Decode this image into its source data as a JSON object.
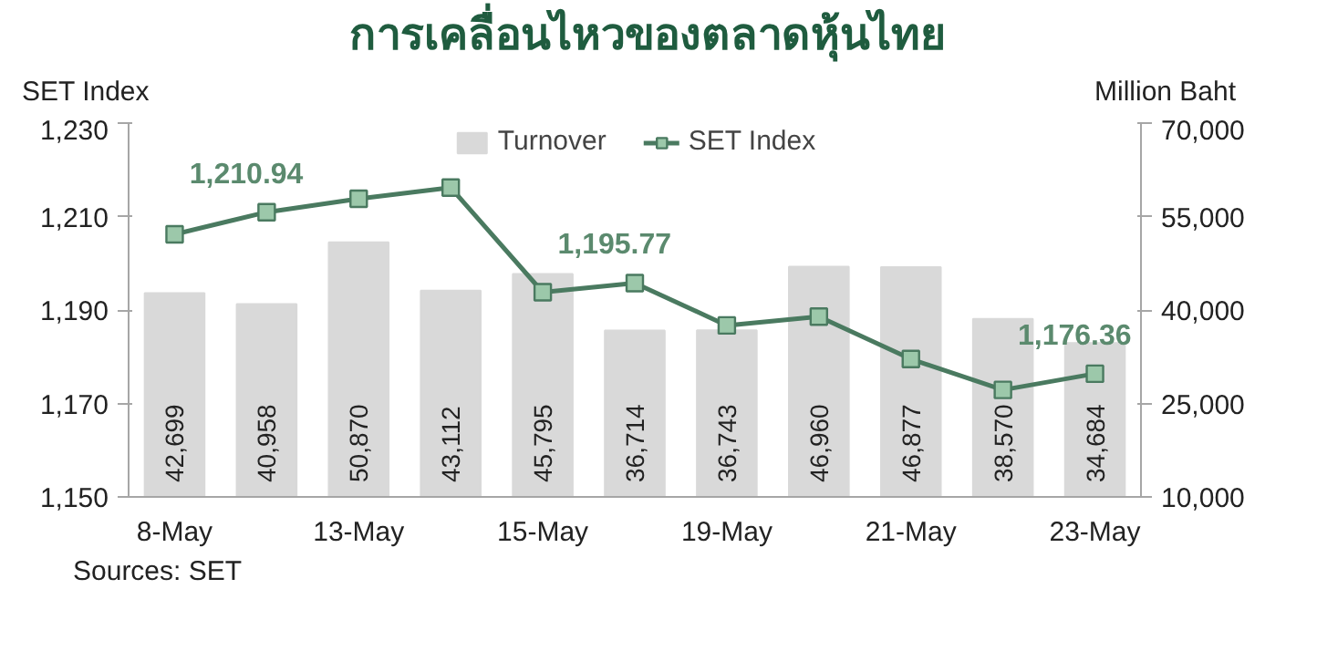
{
  "chart_data": {
    "type": "bar",
    "title": "การเคลื่อนไหวของตลาดหุ้นไทย",
    "categories": [
      "8-May",
      null,
      "13-May",
      null,
      "15-May",
      null,
      "19-May",
      null,
      "21-May",
      null,
      "23-May"
    ],
    "series": [
      {
        "name": "Turnover",
        "axis": "y2",
        "color": "#d9d9d9",
        "values": [
          42699,
          40958,
          50870,
          43112,
          45795,
          36714,
          36743,
          46960,
          46877,
          38570,
          34684
        ],
        "value_labels": [
          "42,699",
          "40,958",
          "50,870",
          "43,112",
          "45,795",
          "36,714",
          "36,743",
          "46,960",
          "46,877",
          "38,570",
          "34,684"
        ]
      },
      {
        "name": "SET Index",
        "type": "line",
        "color": "#4a7a60",
        "marker": "square",
        "values": [
          1206.2,
          1210.94,
          1213.8,
          1216.2,
          1193.8,
          1195.77,
          1186.7,
          1188.6,
          1179.5,
          1172.9,
          1176.36
        ],
        "value_labels": [
          null,
          "1,210.94",
          null,
          null,
          null,
          "1,195.77",
          null,
          null,
          null,
          null,
          "1,176.36"
        ]
      }
    ],
    "ylabel": "SET Index",
    "y2label": "Million Baht",
    "ylim": [
      1150,
      1230
    ],
    "yticks": [
      {
        "value": 1150,
        "label": "1,150"
      },
      {
        "value": 1170,
        "label": "1,170"
      },
      {
        "value": 1190,
        "label": "1,190"
      },
      {
        "value": 1210,
        "label": "1,210"
      },
      {
        "value": 1230,
        "label": "1,230"
      }
    ],
    "y2lim": [
      10000,
      70000
    ],
    "y2ticks": [
      {
        "value": 10000,
        "label": "10,000"
      },
      {
        "value": 25000,
        "label": "25,000"
      },
      {
        "value": 40000,
        "label": "40,000"
      },
      {
        "value": 55000,
        "label": "55,000"
      },
      {
        "value": 70000,
        "label": "70,000"
      }
    ],
    "legend": "top",
    "grid": false,
    "annotations": [
      "Sources: SET"
    ]
  }
}
